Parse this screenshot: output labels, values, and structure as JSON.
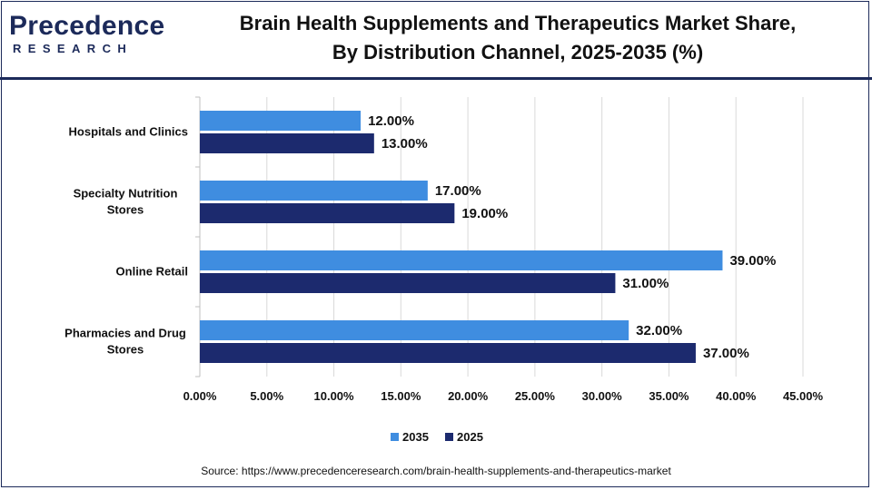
{
  "header": {
    "logo_text": "Precedence",
    "logo_subtext": "RESEARCH",
    "title_line1": "Brain Health Supplements and Therapeutics Market Share,",
    "title_line2": "By Distribution Channel, 2025-2035 (%)"
  },
  "colors": {
    "series_2035": "#3f8de0",
    "series_2025": "#1c2a6e",
    "brand": "#1c2a5a"
  },
  "chart_data": {
    "type": "bar",
    "orientation": "horizontal",
    "categories": [
      [
        "Hospitals and Clinics"
      ],
      [
        "Specialty Nutrition",
        "Stores"
      ],
      [
        "Online Retail"
      ],
      [
        "Pharmacies and Drug",
        "Stores"
      ]
    ],
    "series": [
      {
        "name": "2035",
        "values": [
          12,
          17,
          39,
          32
        ],
        "labels": [
          "12.00%",
          "17.00%",
          "39.00%",
          "32.00%"
        ]
      },
      {
        "name": "2025",
        "values": [
          13,
          19,
          31,
          37
        ],
        "labels": [
          "13.00%",
          "19.00%",
          "31.00%",
          "37.00%"
        ]
      }
    ],
    "xlim": [
      0,
      45
    ],
    "xticks": [
      "0.00%",
      "5.00%",
      "10.00%",
      "15.00%",
      "20.00%",
      "25.00%",
      "30.00%",
      "35.00%",
      "40.00%",
      "45.00%"
    ],
    "grid": "vertical",
    "legend": "bottom"
  },
  "source": "Source: https://www.precedenceresearch.com/brain-health-supplements-and-therapeutics-market"
}
